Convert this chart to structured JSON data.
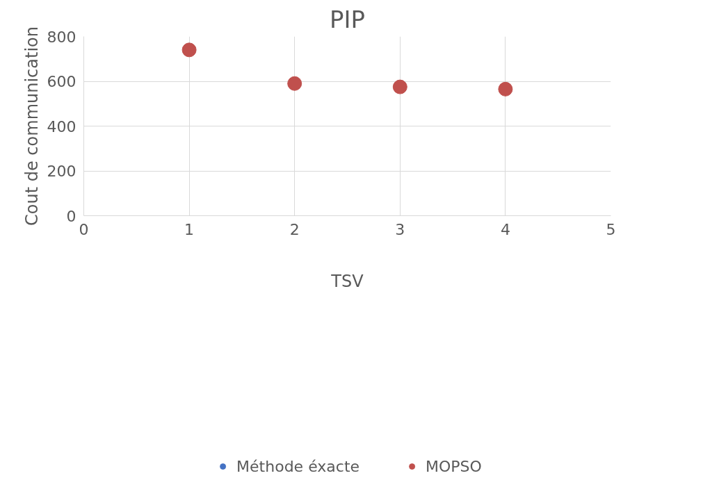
{
  "chart_data": {
    "type": "scatter",
    "title": "PIP",
    "xlabel": "TSV",
    "ylabel": "Cout de communication",
    "x": [
      1,
      2,
      3,
      4
    ],
    "series": [
      {
        "name": "Méthode éxacte",
        "color": "#4472c4",
        "values": [
          null,
          null,
          null,
          null
        ]
      },
      {
        "name": "MOPSO",
        "color": "#c0504d",
        "values": [
          740,
          590,
          575,
          565
        ]
      }
    ],
    "xlim": [
      0,
      5
    ],
    "xticks": [
      0,
      1,
      2,
      3,
      4,
      5
    ],
    "ylim": [
      0,
      800
    ],
    "yticks": [
      0,
      200,
      400,
      600,
      800
    ],
    "grid": true,
    "legend": "bottom",
    "marker": "circle"
  }
}
